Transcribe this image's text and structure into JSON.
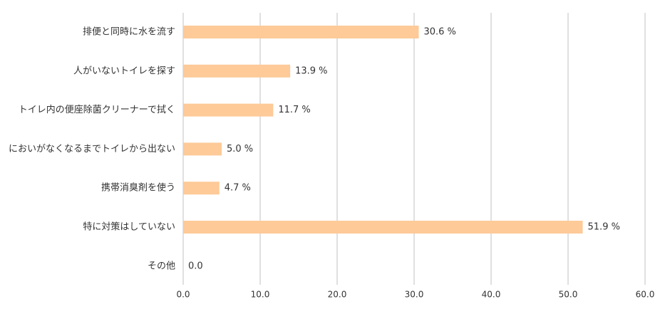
{
  "chart_data": {
    "type": "bar",
    "orientation": "horizontal",
    "categories": [
      "排便と同時に水を流す",
      "人がいないトイレを探す",
      "トイレ内の便座除菌クリーナーで拭く",
      "においがなくなるまでトイレから出ない",
      "携帯消臭剤を使う",
      "特に対策はしていない",
      "その他"
    ],
    "values": [
      30.6,
      13.9,
      11.7,
      5.0,
      4.7,
      51.9,
      0.0
    ],
    "value_labels": [
      "30.6 %",
      "13.9 %",
      "11.7 %",
      "5.0 %",
      "4.7 %",
      "51.9 %",
      "0.0"
    ],
    "color": "#fdca98",
    "xlim": [
      0,
      60
    ],
    "xticks": [
      {
        "value": 0,
        "label": "0.0"
      },
      {
        "value": 10,
        "label": "10.0"
      },
      {
        "value": 20,
        "label": "20.0"
      },
      {
        "value": 30,
        "label": "30.0"
      },
      {
        "value": 40,
        "label": "40.0"
      },
      {
        "value": 50,
        "label": "50.0"
      },
      {
        "value": 60,
        "label": "60.0"
      }
    ],
    "grid": true
  }
}
